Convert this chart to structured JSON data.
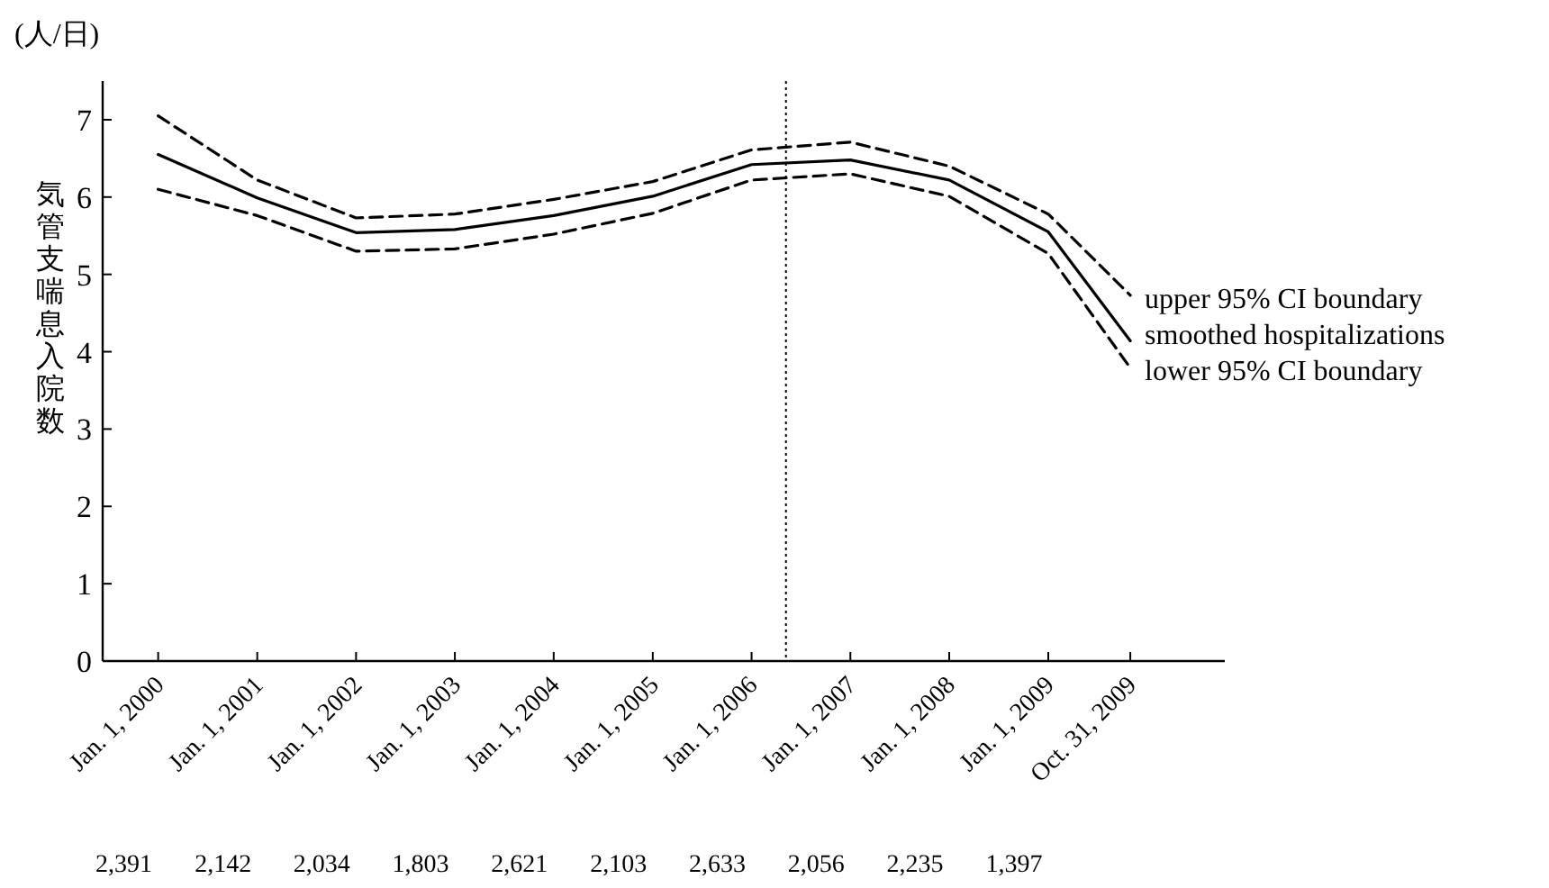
{
  "chart_data": {
    "type": "line",
    "ylabel": "気管支喘息入院数",
    "x": [
      "2000-01-01",
      "2001-01-01",
      "2002-01-01",
      "2003-01-01",
      "2004-01-01",
      "2005-01-01",
      "2006-01-01",
      "2007-01-01",
      "2008-01-01",
      "2009-01-01",
      "2009-10-31"
    ],
    "xlim": [
      "1999-06-10",
      "2010-10-15"
    ],
    "xticks": [
      {
        "value": "2000-01-01",
        "label": "Jan. 1, 2000"
      },
      {
        "value": "2001-01-01",
        "label": "Jan. 1, 2001"
      },
      {
        "value": "2002-01-01",
        "label": "Jan. 1, 2002"
      },
      {
        "value": "2003-01-01",
        "label": "Jan. 1, 2003"
      },
      {
        "value": "2004-01-01",
        "label": "Jan. 1, 2004"
      },
      {
        "value": "2005-01-01",
        "label": "Jan. 1, 2005"
      },
      {
        "value": "2006-01-01",
        "label": "Jan. 1, 2006"
      },
      {
        "value": "2007-01-01",
        "label": "Jan. 1, 2007"
      },
      {
        "value": "2008-01-01",
        "label": "Jan. 1, 2008"
      },
      {
        "value": "2009-01-01",
        "label": "Jan. 1, 2009"
      },
      {
        "value": "2009-10-31",
        "label": "Oct. 31, 2009"
      }
    ],
    "series": [
      {
        "name": "upper 95% CI boundary",
        "color": "#000000",
        "line_style": "dashed",
        "values": [
          7.05,
          6.22,
          5.73,
          5.78,
          5.97,
          6.2,
          6.61,
          6.71,
          6.4,
          5.78,
          4.73
        ]
      },
      {
        "name": "smoothed hospitalizations",
        "color": "#000000",
        "line_style": "solid",
        "values": [
          6.55,
          5.99,
          5.54,
          5.58,
          5.76,
          6.01,
          6.42,
          6.48,
          6.22,
          5.55,
          4.14
        ]
      },
      {
        "name": "lower 95% CI boundary",
        "color": "#000000",
        "line_style": "dashed",
        "values": [
          6.1,
          5.76,
          5.3,
          5.33,
          5.52,
          5.79,
          6.22,
          6.3,
          6.01,
          5.27,
          3.79
        ]
      }
    ],
    "ylim": [
      0,
      7.5
    ],
    "yticks": [
      0,
      1,
      2,
      3,
      4,
      5,
      6,
      7
    ],
    "ref_lines": [
      {
        "axis": "x",
        "value": "2006-05-08",
        "color": "#000000",
        "line_style": "dotted"
      }
    ],
    "annotations": [
      "(人/日)",
      "2,391",
      "2,142",
      "2,034",
      "1,803",
      "2,621",
      "2,103",
      "2,633",
      "2,056",
      "2,235",
      "1,397"
    ]
  }
}
